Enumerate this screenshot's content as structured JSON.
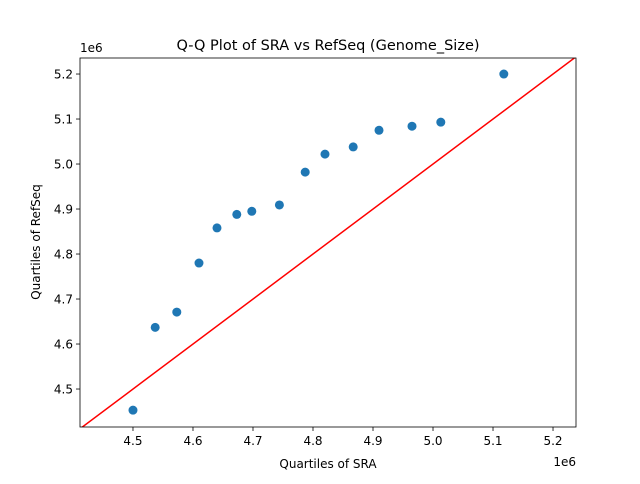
{
  "chart_data": {
    "type": "scatter",
    "title": "Q-Q Plot of SRA vs RefSeq (Genome_Size)",
    "xlabel": "Quartiles of SRA",
    "ylabel": "Quartiles of RefSeq",
    "x_offset_label": "1e6",
    "y_offset_label": "1e6",
    "xlim": [
      4.4117,
      5.2383
    ],
    "ylim": [
      4.4156,
      5.2356
    ],
    "xticks": [
      "4.5",
      "4.6",
      "4.7",
      "4.8",
      "4.9",
      "5.0",
      "5.1",
      "5.2"
    ],
    "yticks": [
      "4.5",
      "4.6",
      "4.7",
      "4.8",
      "4.9",
      "5.0",
      "5.1",
      "5.2"
    ],
    "grid": false,
    "points": {
      "color": "#1f77b4",
      "x": [
        4.5,
        4.537,
        4.573,
        4.61,
        4.64,
        4.673,
        4.698,
        4.744,
        4.787,
        4.82,
        4.867,
        4.91,
        4.965,
        5.013,
        5.118
      ],
      "y": [
        4.453,
        4.637,
        4.671,
        4.78,
        4.858,
        4.888,
        4.895,
        4.909,
        4.982,
        5.022,
        5.038,
        5.075,
        5.084,
        5.093,
        5.2
      ]
    },
    "reference_line": {
      "type": "y=x",
      "color": "#ff0000"
    }
  }
}
